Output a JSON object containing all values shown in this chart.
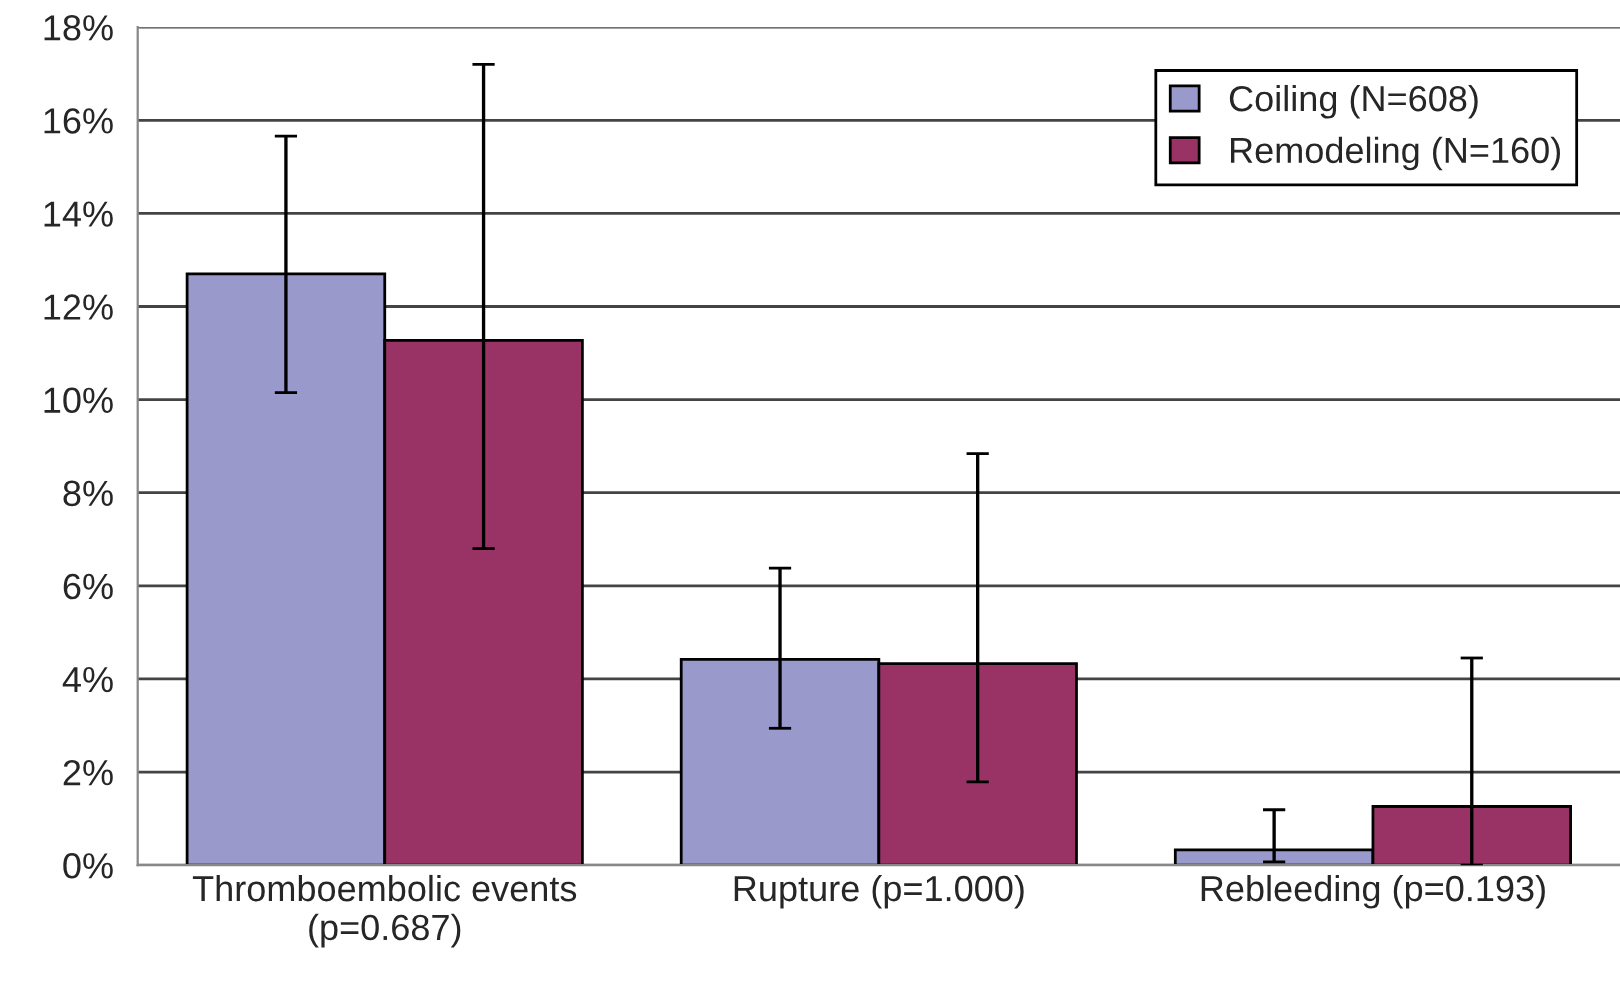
{
  "chart_data": {
    "type": "bar",
    "categories": [
      "Thromboembolic events\n(p=0.687)",
      "Rupture (p=1.000)",
      "Rebleeding (p=0.193)"
    ],
    "series": [
      {
        "name": "Coiling (N=608)",
        "color": "#9999cc",
        "values": [
          12.7,
          4.42,
          0.33
        ],
        "errors": [
          [
            10.15,
            15.66
          ],
          [
            2.94,
            6.38
          ],
          [
            0.07,
            1.19
          ]
        ]
      },
      {
        "name": "Remodeling (N=160)",
        "color": "#993366",
        "values": [
          11.27,
          4.33,
          1.26
        ],
        "errors": [
          [
            6.8,
            17.2
          ],
          [
            1.79,
            8.84
          ],
          [
            0,
            4.45
          ]
        ]
      }
    ],
    "ylim": [
      0,
      18
    ],
    "yticks": [
      {
        "value": 0,
        "label": "0%"
      },
      {
        "value": 2,
        "label": "2%"
      },
      {
        "value": 4,
        "label": "4%"
      },
      {
        "value": 6,
        "label": "6%"
      },
      {
        "value": 8,
        "label": "8%"
      },
      {
        "value": 10,
        "label": "10%"
      },
      {
        "value": 12,
        "label": "12%"
      },
      {
        "value": 14,
        "label": "14%"
      },
      {
        "value": 16,
        "label": "16%"
      },
      {
        "value": 18,
        "label": "18%"
      }
    ],
    "grid": "y",
    "legend": "top right"
  }
}
